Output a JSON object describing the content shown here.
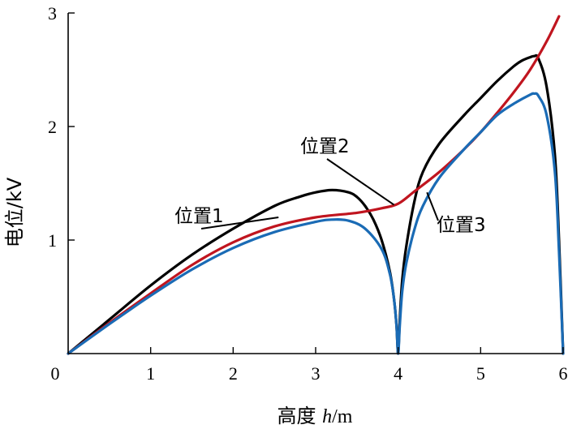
{
  "chart_data": {
    "type": "line",
    "title": "",
    "xlabel": {
      "prefix": "高度 ",
      "var": "h",
      "unit": "/m"
    },
    "ylabel": "电位/kV",
    "xlim": [
      0,
      6
    ],
    "ylim": [
      0,
      3
    ],
    "xticks": [
      "0",
      "1",
      "2",
      "3",
      "4",
      "5",
      "6"
    ],
    "yticks": [
      "1",
      "2",
      "3"
    ],
    "grid": false,
    "legend": "none",
    "series": [
      {
        "name": "位置1",
        "color": "#000000",
        "x": [
          0,
          0.5,
          1,
          1.5,
          2,
          2.5,
          2.8,
          3.0,
          3.2,
          3.4,
          3.5,
          3.6,
          3.7,
          3.8,
          3.9,
          3.95,
          3.98,
          4.0,
          4.02,
          4.05,
          4.1,
          4.2,
          4.3,
          4.5,
          4.8,
          5.0,
          5.2,
          5.4,
          5.5,
          5.6,
          5.65,
          5.7,
          5.8,
          5.9,
          5.95,
          6.0
        ],
        "y": [
          0,
          0.3,
          0.6,
          0.87,
          1.1,
          1.3,
          1.38,
          1.42,
          1.44,
          1.42,
          1.38,
          1.3,
          1.18,
          1.0,
          0.72,
          0.48,
          0.25,
          0,
          0.3,
          0.65,
          0.95,
          1.35,
          1.6,
          1.85,
          2.1,
          2.25,
          2.4,
          2.53,
          2.58,
          2.61,
          2.62,
          2.6,
          2.35,
          1.75,
          1.0,
          0
        ]
      },
      {
        "name": "位置2",
        "color": "#c0151f",
        "x": [
          0,
          0.5,
          1,
          1.5,
          2,
          2.5,
          3.0,
          3.5,
          3.8,
          4.0,
          4.2,
          4.5,
          4.8,
          5.0,
          5.2,
          5.4,
          5.6,
          5.8,
          5.95
        ],
        "y": [
          0,
          0.27,
          0.53,
          0.78,
          0.98,
          1.12,
          1.2,
          1.24,
          1.28,
          1.32,
          1.43,
          1.6,
          1.8,
          1.95,
          2.12,
          2.3,
          2.5,
          2.75,
          2.97
        ]
      },
      {
        "name": "位置3",
        "color": "#1a6bb5",
        "x": [
          0,
          0.5,
          1,
          1.5,
          2,
          2.5,
          3.0,
          3.2,
          3.4,
          3.6,
          3.8,
          3.9,
          3.95,
          3.98,
          4.0,
          4.02,
          4.05,
          4.1,
          4.2,
          4.3,
          4.5,
          4.8,
          5.0,
          5.2,
          5.4,
          5.6,
          5.65,
          5.7,
          5.8,
          5.9,
          5.95,
          6.0
        ],
        "y": [
          0,
          0.26,
          0.51,
          0.74,
          0.93,
          1.07,
          1.16,
          1.18,
          1.17,
          1.1,
          0.92,
          0.7,
          0.48,
          0.25,
          0,
          0.25,
          0.55,
          0.8,
          1.1,
          1.3,
          1.55,
          1.8,
          1.95,
          2.1,
          2.2,
          2.28,
          2.29,
          2.27,
          2.1,
          1.6,
          0.9,
          0
        ]
      }
    ],
    "annotations": [
      {
        "text": "位置1",
        "series": 0,
        "target": [
          2.55,
          1.2
        ]
      },
      {
        "text": "位置2",
        "series": 1,
        "target": [
          3.95,
          1.31
        ]
      },
      {
        "text": "位置3",
        "series": 2,
        "target": [
          4.35,
          1.42
        ]
      }
    ]
  }
}
